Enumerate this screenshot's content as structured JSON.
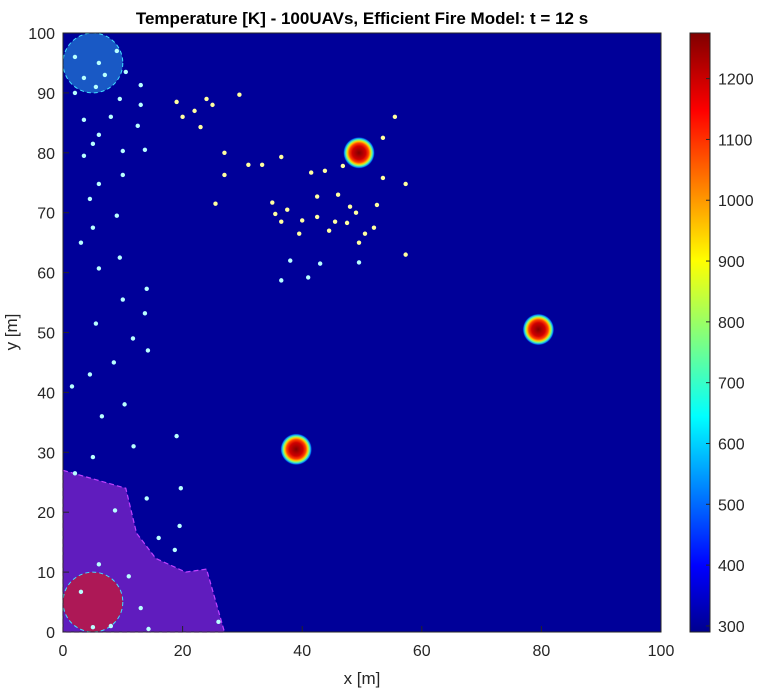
{
  "chart_data": {
    "type": "heatmap",
    "title": "Temperature [K] - 100UAVs, Efficient Fire Model: t = 12 s",
    "xlabel": "x [m]",
    "ylabel": "y [m]",
    "xlim": [
      0,
      100
    ],
    "ylim": [
      0,
      100
    ],
    "xticks": [
      0,
      20,
      40,
      60,
      80,
      100
    ],
    "yticks": [
      0,
      10,
      20,
      30,
      40,
      50,
      60,
      70,
      80,
      90,
      100
    ],
    "grid": false,
    "colormap": "jet",
    "colorbar": {
      "min": 290,
      "max": 1275,
      "ticks": [
        300,
        400,
        500,
        600,
        700,
        800,
        900,
        1000,
        1100,
        1200
      ],
      "placement": "right"
    },
    "background_temperature_K": 300,
    "hotspots": [
      {
        "x": 49.5,
        "y": 80,
        "peak_K": 1250
      },
      {
        "x": 79.5,
        "y": 50.5,
        "peak_K": 1250
      },
      {
        "x": 39,
        "y": 30.5,
        "peak_K": 1250
      }
    ],
    "base_zone": {
      "center": [
        5,
        5
      ],
      "radius": 5,
      "color": "#c0183c"
    },
    "target_zone": {
      "center": [
        5,
        95
      ],
      "radius": 5,
      "color": "#1f6fd0"
    },
    "sector_region": {
      "color": "#6a1fc2",
      "outline": [
        [
          0,
          27
        ],
        [
          10.5,
          24
        ],
        [
          12.3,
          16.5
        ],
        [
          15.5,
          12.3
        ],
        [
          20.5,
          10
        ],
        [
          24,
          10.5
        ],
        [
          27,
          0
        ],
        [
          0,
          0
        ]
      ]
    },
    "uavs": [
      [
        2,
        96
      ],
      [
        6,
        95
      ],
      [
        9,
        97
      ],
      [
        3.5,
        92.5
      ],
      [
        7,
        93
      ],
      [
        5.5,
        91
      ],
      [
        10.5,
        93.5
      ],
      [
        13,
        91.3
      ],
      [
        2,
        90
      ],
      [
        9.5,
        89
      ],
      [
        13,
        88
      ],
      [
        19,
        88.5
      ],
      [
        24,
        89
      ],
      [
        25,
        88
      ],
      [
        29.5,
        89.7
      ],
      [
        22,
        87
      ],
      [
        20,
        86
      ],
      [
        8,
        86
      ],
      [
        12.5,
        84.5
      ],
      [
        23,
        84.3
      ],
      [
        3.5,
        85.5
      ],
      [
        6,
        83
      ],
      [
        10,
        80.3
      ],
      [
        5,
        81.5
      ],
      [
        3.5,
        79.5
      ],
      [
        13.7,
        80.5
      ],
      [
        27,
        80
      ],
      [
        31,
        78
      ],
      [
        33.3,
        78
      ],
      [
        36.5,
        79.3
      ],
      [
        41.5,
        76.7
      ],
      [
        43.8,
        77
      ],
      [
        46.8,
        77.8
      ],
      [
        53.5,
        82.5
      ],
      [
        55.5,
        86
      ],
      [
        53.5,
        75.8
      ],
      [
        57.3,
        74.8
      ],
      [
        10,
        76.3
      ],
      [
        6,
        74.8
      ],
      [
        27,
        76.3
      ],
      [
        25.5,
        71.5
      ],
      [
        4.5,
        72.3
      ],
      [
        9,
        69.5
      ],
      [
        35,
        71.7
      ],
      [
        35.5,
        69.8
      ],
      [
        37.5,
        70.5
      ],
      [
        36.5,
        68.5
      ],
      [
        40,
        68.7
      ],
      [
        42.5,
        72.7
      ],
      [
        42.5,
        69.3
      ],
      [
        46,
        73
      ],
      [
        48,
        71
      ],
      [
        49,
        70
      ],
      [
        45.5,
        68.5
      ],
      [
        47.5,
        68.3
      ],
      [
        52.5,
        71.3
      ],
      [
        50.5,
        66.5
      ],
      [
        52,
        67.5
      ],
      [
        44.5,
        67
      ],
      [
        49.5,
        65
      ],
      [
        39.5,
        66.5
      ],
      [
        38,
        62
      ],
      [
        41,
        59.2
      ],
      [
        43,
        61.5
      ],
      [
        49.5,
        61.7
      ],
      [
        57.3,
        63
      ],
      [
        5,
        67.5
      ],
      [
        3,
        65
      ],
      [
        9.5,
        62.5
      ],
      [
        6,
        60.7
      ],
      [
        36.5,
        58.7
      ],
      [
        14,
        57.3
      ],
      [
        10,
        55.5
      ],
      [
        13.7,
        53.2
      ],
      [
        5.5,
        51.5
      ],
      [
        11.7,
        49
      ],
      [
        14.2,
        47
      ],
      [
        8.5,
        45
      ],
      [
        4.5,
        43
      ],
      [
        1.5,
        41
      ],
      [
        10.3,
        38
      ],
      [
        6.5,
        36
      ],
      [
        19,
        32.7
      ],
      [
        11.8,
        31
      ],
      [
        5,
        29.2
      ],
      [
        2,
        26.5
      ],
      [
        19.7,
        24
      ],
      [
        14,
        22.3
      ],
      [
        8.7,
        20.3
      ],
      [
        19.5,
        17.7
      ],
      [
        16,
        15.7
      ],
      [
        18.7,
        13.7
      ],
      [
        6,
        11.3
      ],
      [
        11,
        9.3
      ],
      [
        3,
        6.7
      ],
      [
        13,
        4
      ],
      [
        26,
        1.7
      ],
      [
        5,
        0.8
      ],
      [
        14.3,
        0.5
      ],
      [
        8,
        1
      ]
    ]
  }
}
